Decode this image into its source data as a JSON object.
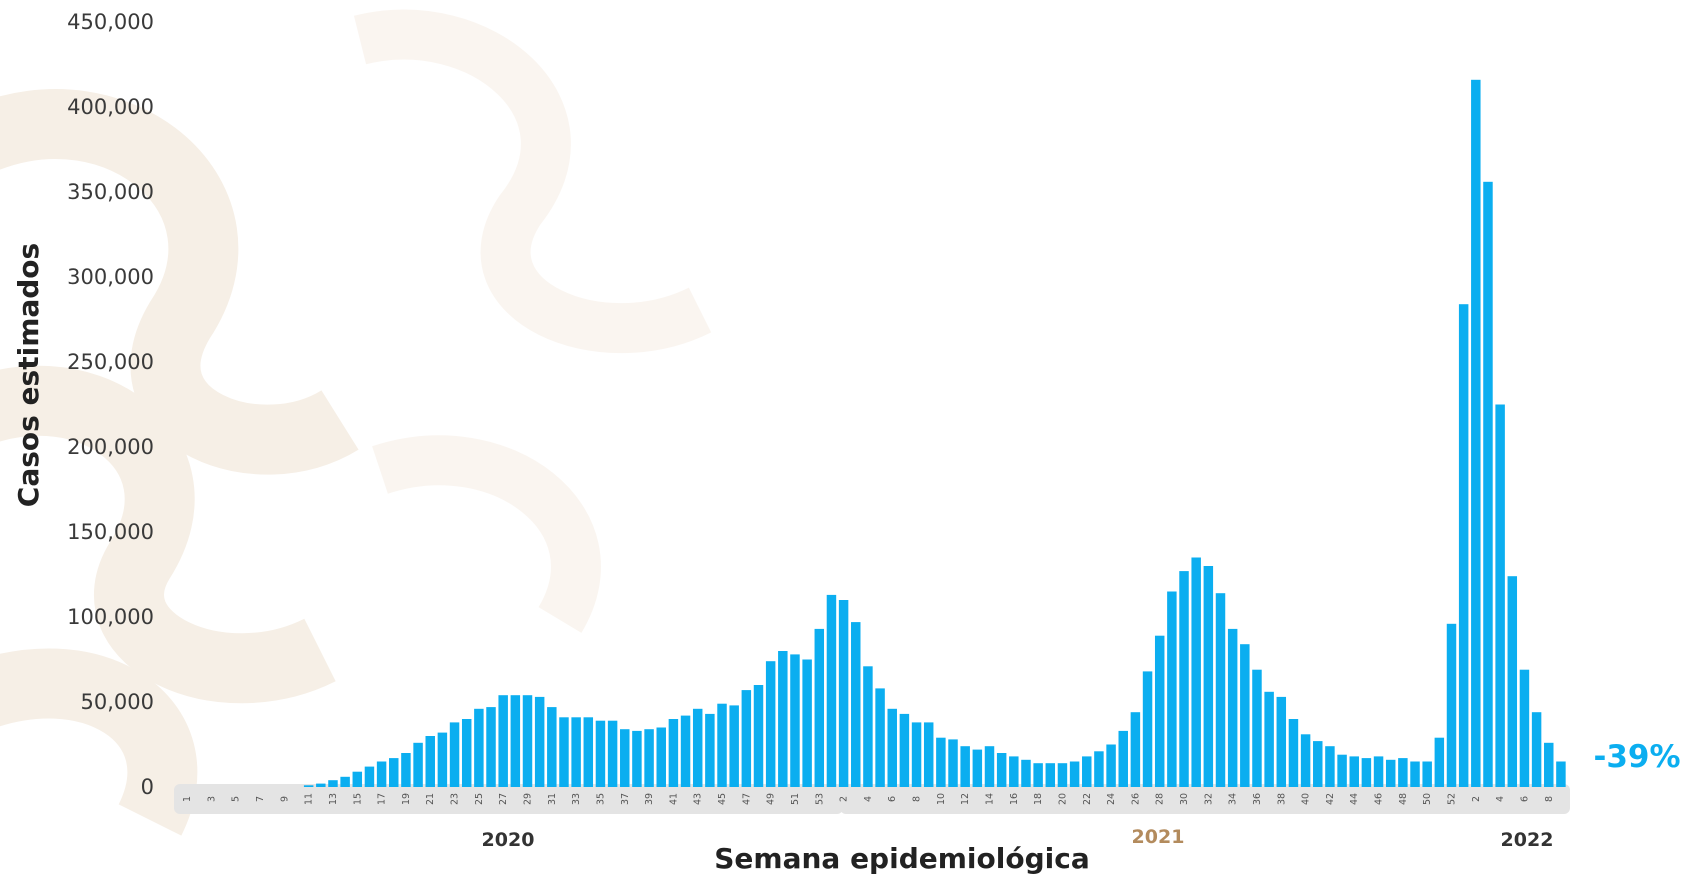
{
  "colors": {
    "bar": "#0baef0",
    "year_2021": "#b38b5d",
    "year_default": "#333333",
    "band": "#e4e4e4",
    "annotation": "#0baef0",
    "watermark": "#f6efe6"
  },
  "chart_data": {
    "type": "bar",
    "ylabel": "Casos estimados",
    "xlabel": "Semana epidemiológica",
    "ylim": [
      0,
      450000
    ],
    "yticks": [
      0,
      50000,
      100000,
      150000,
      200000,
      250000,
      300000,
      350000,
      400000,
      450000
    ],
    "ytick_labels": [
      "0",
      "50,000",
      "100,000",
      "150,000",
      "200,000",
      "250,000",
      "300,000",
      "350,000",
      "400,000",
      "450,000"
    ],
    "grid": false,
    "legend": "none",
    "years": [
      {
        "label": "2020",
        "start_week": 1,
        "end_week": 53
      },
      {
        "label": "2021",
        "start_week": 1,
        "end_week": 52
      },
      {
        "label": "2022",
        "start_week": 1,
        "end_week": 9
      }
    ],
    "tick_labels": [
      "1",
      "3",
      "5",
      "7",
      "9",
      "11",
      "13",
      "15",
      "17",
      "19",
      "21",
      "23",
      "25",
      "27",
      "29",
      "31",
      "33",
      "35",
      "37",
      "39",
      "41",
      "43",
      "45",
      "47",
      "49",
      "51",
      "53",
      "2",
      "4",
      "6",
      "8",
      "10",
      "12",
      "14",
      "16",
      "18",
      "20",
      "22",
      "24",
      "26",
      "28",
      "30",
      "32",
      "34",
      "36",
      "38",
      "40",
      "42",
      "44",
      "46",
      "48",
      "50",
      "52",
      "2",
      "4",
      "6",
      "8"
    ],
    "values": [
      0,
      0,
      0,
      0,
      0,
      0,
      0,
      0,
      0,
      0,
      1000,
      2000,
      4000,
      6000,
      9000,
      12000,
      15000,
      17000,
      20000,
      26000,
      30000,
      32000,
      38000,
      40000,
      46000,
      47000,
      54000,
      54000,
      54000,
      53000,
      47000,
      41000,
      41000,
      41000,
      39000,
      39000,
      34000,
      33000,
      34000,
      35000,
      40000,
      42000,
      46000,
      43000,
      49000,
      48000,
      57000,
      60000,
      74000,
      80000,
      78000,
      75000,
      93000,
      113000,
      110000,
      97000,
      71000,
      58000,
      46000,
      43000,
      38000,
      38000,
      29000,
      28000,
      24000,
      22000,
      24000,
      20000,
      18000,
      16000,
      14000,
      14000,
      14000,
      15000,
      18000,
      21000,
      25000,
      33000,
      44000,
      68000,
      89000,
      115000,
      127000,
      135000,
      130000,
      114000,
      93000,
      84000,
      69000,
      56000,
      53000,
      40000,
      31000,
      27000,
      24000,
      19000,
      18000,
      17000,
      18000,
      16000,
      17000,
      15000,
      15000,
      29000,
      96000,
      284000,
      416000,
      356000,
      225000,
      124000,
      69000,
      44000,
      26000,
      15000
    ],
    "annotations": [
      {
        "text": "-39%"
      }
    ]
  }
}
